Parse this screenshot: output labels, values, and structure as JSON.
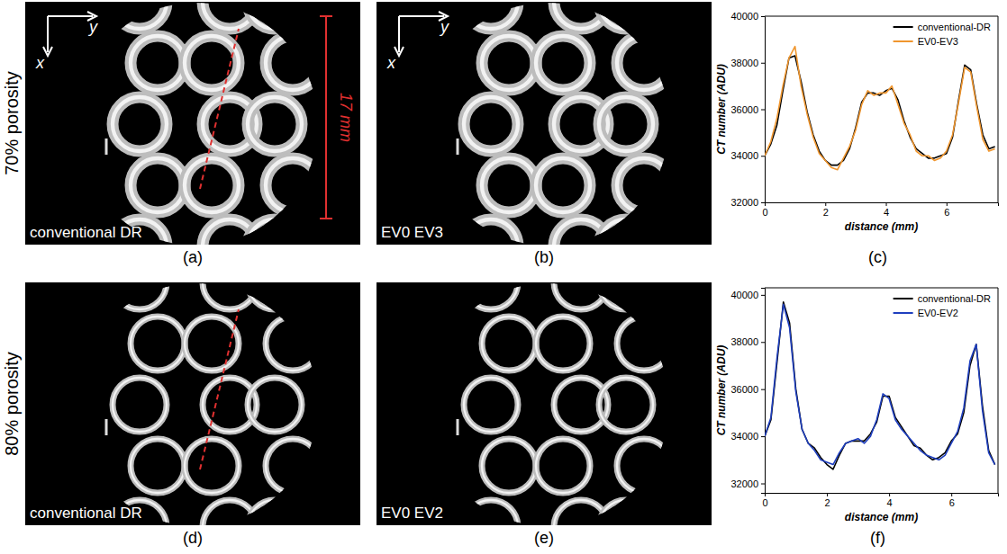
{
  "figure": {
    "rows": [
      {
        "label": "70% porosity",
        "panels": [
          {
            "letter": "(a)",
            "caption": "conventional DR",
            "axes": [
              "x",
              "y"
            ],
            "scale_bar": "17 mm"
          },
          {
            "letter": "(b)",
            "caption": "EV0 EV3",
            "axes": [
              "x",
              "y"
            ]
          },
          {
            "letter": "(c)"
          }
        ]
      },
      {
        "label": "80% porosity",
        "panels": [
          {
            "letter": "(d)",
            "caption": "conventional DR"
          },
          {
            "letter": "(e)",
            "caption": "EV0 EV2"
          },
          {
            "letter": "(f)"
          }
        ]
      }
    ]
  },
  "chart_data": [
    {
      "type": "line",
      "x_label": "distance (mm)",
      "y_label": "CT number (ADU)",
      "x": [
        0,
        0.2,
        0.4,
        0.6,
        0.8,
        1.0,
        1.2,
        1.4,
        1.6,
        1.8,
        2.0,
        2.2,
        2.4,
        2.6,
        2.8,
        3.0,
        3.2,
        3.4,
        3.6,
        3.8,
        4.0,
        4.2,
        4.4,
        4.6,
        4.8,
        5.0,
        5.2,
        5.4,
        5.6,
        5.8,
        6.0,
        6.2,
        6.4,
        6.6,
        6.8,
        7.0,
        7.2,
        7.4,
        7.6
      ],
      "series": [
        {
          "name": "conventional-DR",
          "color": "#000000",
          "values": [
            34000,
            34500,
            35300,
            36800,
            38200,
            38300,
            37200,
            35900,
            34900,
            34200,
            33800,
            33600,
            33600,
            33800,
            34300,
            35200,
            36300,
            36700,
            36700,
            36600,
            36800,
            36900,
            36400,
            35500,
            34800,
            34300,
            34100,
            33900,
            33900,
            34000,
            34100,
            34800,
            36400,
            37900,
            37700,
            36200,
            34900,
            34300,
            34400
          ]
        },
        {
          "name": "EV0-EV3",
          "color": "#f0962e",
          "values": [
            34000,
            34600,
            35600,
            37000,
            38200,
            38700,
            37000,
            35800,
            34800,
            34100,
            33800,
            33500,
            33400,
            33900,
            34400,
            35100,
            36200,
            36800,
            36600,
            36700,
            36700,
            37000,
            36200,
            35400,
            34900,
            34200,
            34000,
            34000,
            33800,
            33900,
            34200,
            34900,
            36300,
            37800,
            37600,
            36100,
            34700,
            34200,
            34300
          ]
        }
      ],
      "xlim": [
        0,
        7.7
      ],
      "xticks": [
        0,
        2,
        4,
        6
      ],
      "ylim": [
        32000,
        40000
      ],
      "yticks": [
        32000,
        34000,
        36000,
        38000,
        40000
      ],
      "legend": "upper right"
    },
    {
      "type": "line",
      "x_label": "distance (mm)",
      "y_label": "CT number (ADU)",
      "x": [
        0,
        0.2,
        0.4,
        0.6,
        0.8,
        1.0,
        1.2,
        1.4,
        1.6,
        1.8,
        2.0,
        2.2,
        2.4,
        2.6,
        2.8,
        3.0,
        3.2,
        3.4,
        3.6,
        3.8,
        4.0,
        4.2,
        4.4,
        4.6,
        4.8,
        5.0,
        5.2,
        5.4,
        5.6,
        5.8,
        6.0,
        6.2,
        6.4,
        6.6,
        6.8,
        7.0,
        7.2,
        7.4
      ],
      "series": [
        {
          "name": "conventional-DR",
          "color": "#000000",
          "values": [
            34000,
            34700,
            37200,
            39700,
            38800,
            36000,
            34300,
            33700,
            33500,
            33100,
            32800,
            32600,
            33200,
            33700,
            33800,
            33800,
            33800,
            34100,
            34600,
            35700,
            35700,
            34800,
            34400,
            34000,
            33600,
            33500,
            33200,
            33000,
            33100,
            33300,
            33800,
            34100,
            35000,
            37000,
            37900,
            35300,
            33400,
            32800
          ]
        },
        {
          "name": "EV0-EV2",
          "color": "#1f3fbf",
          "values": [
            34000,
            34800,
            37400,
            39600,
            38600,
            35900,
            34300,
            33700,
            33400,
            33000,
            32900,
            32800,
            33300,
            33700,
            33800,
            33900,
            33700,
            34000,
            34700,
            35800,
            35600,
            34700,
            34300,
            34000,
            33700,
            33400,
            33200,
            33100,
            33000,
            33200,
            33700,
            34200,
            35200,
            37200,
            37900,
            35100,
            33300,
            32800
          ]
        }
      ],
      "xlim": [
        0,
        7.5
      ],
      "xticks": [
        0,
        2,
        4,
        6
      ],
      "ylim": [
        31600,
        40300
      ],
      "yticks": [
        32000,
        34000,
        36000,
        38000,
        40000
      ],
      "legend": "upper right"
    }
  ]
}
